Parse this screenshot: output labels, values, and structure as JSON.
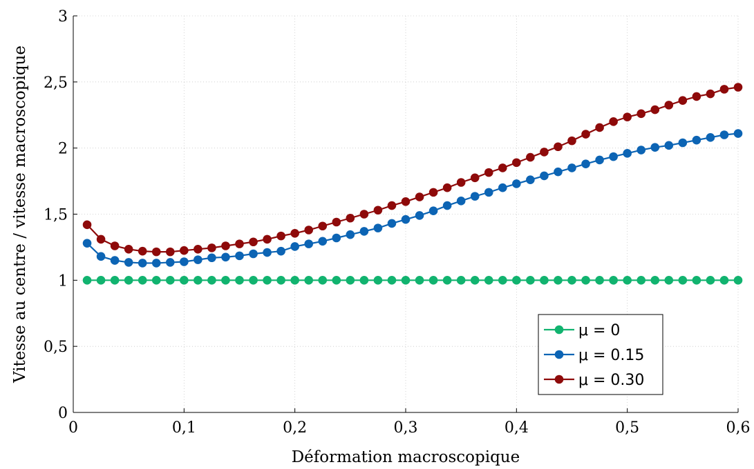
{
  "chart_data": {
    "type": "line",
    "title": "",
    "xlabel": "Déformation macroscopique",
    "ylabel": "Vitesse au centre / vitesse macroscopique",
    "xlim": [
      0,
      0.6
    ],
    "ylim": [
      0,
      3
    ],
    "x_ticks": [
      0,
      0.1,
      0.2,
      0.3,
      0.4,
      0.5,
      0.6
    ],
    "x_tick_labels": [
      "0",
      "0,1",
      "0,2",
      "0,3",
      "0,4",
      "0,5",
      "0,6"
    ],
    "y_ticks": [
      0,
      0.5,
      1,
      1.5,
      2,
      2.5,
      3
    ],
    "y_tick_labels": [
      "0",
      "0,5",
      "1",
      "1,5",
      "2",
      "2,5",
      "3"
    ],
    "grid": true,
    "legend_position": "bottom-right",
    "x": [
      0.0125,
      0.025,
      0.0375,
      0.05,
      0.0625,
      0.075,
      0.0875,
      0.1,
      0.1125,
      0.125,
      0.1375,
      0.15,
      0.1625,
      0.175,
      0.1875,
      0.2,
      0.2125,
      0.225,
      0.2375,
      0.25,
      0.2625,
      0.275,
      0.2875,
      0.3,
      0.3125,
      0.325,
      0.3375,
      0.35,
      0.3625,
      0.375,
      0.3875,
      0.4,
      0.4125,
      0.425,
      0.4375,
      0.45,
      0.4625,
      0.475,
      0.4875,
      0.5,
      0.5125,
      0.525,
      0.5375,
      0.55,
      0.5625,
      0.575,
      0.5875,
      0.6
    ],
    "series": [
      {
        "name": "μ = 0",
        "color": "#11b36f",
        "values": [
          1,
          1,
          1,
          1,
          1,
          1,
          1,
          1,
          1,
          1,
          1,
          1,
          1,
          1,
          1,
          1,
          1,
          1,
          1,
          1,
          1,
          1,
          1,
          1,
          1,
          1,
          1,
          1,
          1,
          1,
          1,
          1,
          1,
          1,
          1,
          1,
          1,
          1,
          1,
          1,
          1,
          1,
          1,
          1,
          1,
          1,
          1,
          1
        ]
      },
      {
        "name": "μ = 0.15",
        "color": "#0c64b4",
        "values": [
          1.28,
          1.18,
          1.15,
          1.135,
          1.13,
          1.13,
          1.135,
          1.14,
          1.155,
          1.17,
          1.175,
          1.185,
          1.2,
          1.21,
          1.22,
          1.255,
          1.275,
          1.295,
          1.32,
          1.345,
          1.37,
          1.395,
          1.43,
          1.46,
          1.49,
          1.525,
          1.565,
          1.6,
          1.635,
          1.665,
          1.7,
          1.73,
          1.76,
          1.79,
          1.82,
          1.85,
          1.88,
          1.91,
          1.935,
          1.96,
          1.985,
          2.005,
          2.02,
          2.04,
          2.06,
          2.08,
          2.1,
          2.11
        ]
      },
      {
        "name": "μ = 0.30",
        "color": "#8e0a0a",
        "values": [
          1.42,
          1.31,
          1.26,
          1.235,
          1.22,
          1.215,
          1.215,
          1.225,
          1.235,
          1.245,
          1.26,
          1.275,
          1.29,
          1.31,
          1.335,
          1.355,
          1.38,
          1.41,
          1.44,
          1.47,
          1.5,
          1.53,
          1.565,
          1.595,
          1.63,
          1.665,
          1.7,
          1.74,
          1.775,
          1.815,
          1.85,
          1.89,
          1.93,
          1.97,
          2.01,
          2.055,
          2.105,
          2.155,
          2.2,
          2.235,
          2.26,
          2.29,
          2.325,
          2.36,
          2.39,
          2.41,
          2.445,
          2.46
        ]
      }
    ]
  }
}
